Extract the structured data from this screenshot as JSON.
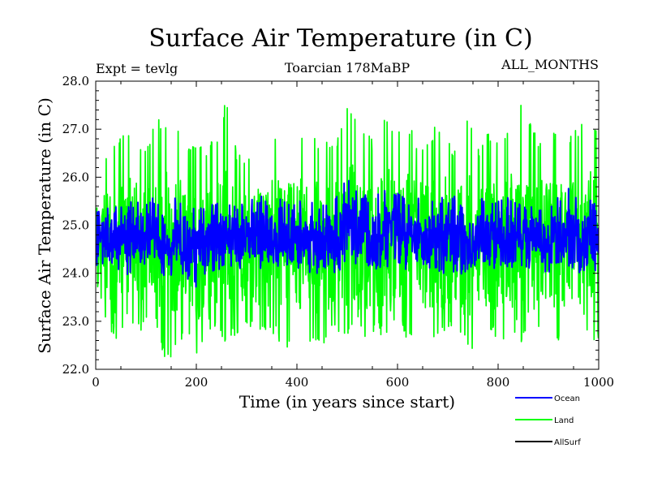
{
  "chart_data": {
    "type": "line",
    "title": "Surface Air Temperature (in C)",
    "left_subtitle": "Expt = tevlg",
    "center_subtitle": "Toarcian 178MaBP",
    "right_subtitle": "ALL_MONTHS",
    "xlabel": "Time (in years since start)",
    "ylabel": "Surface Air Temperature (in C)",
    "xlim": [
      0,
      1000
    ],
    "ylim": [
      22.0,
      28.0
    ],
    "x_ticks": [
      0,
      200,
      400,
      600,
      800,
      1000
    ],
    "x_tick_labels": [
      "0",
      "200",
      "400",
      "600",
      "800",
      "1000"
    ],
    "y_ticks": [
      22.0,
      23.0,
      24.0,
      25.0,
      26.0,
      27.0,
      28.0
    ],
    "y_tick_labels": [
      "22.0",
      "23.0",
      "24.0",
      "25.0",
      "26.0",
      "27.0",
      "28.0"
    ],
    "series": [
      {
        "name": "Land",
        "color": "#00ff00",
        "x": [
          0,
          20,
          40,
          60,
          80,
          100,
          120,
          140,
          160,
          180,
          200,
          220,
          240,
          260,
          280,
          300,
          320,
          340,
          360,
          380,
          400,
          420,
          440,
          460,
          480,
          500,
          520,
          540,
          560,
          580,
          600,
          620,
          640,
          660,
          680,
          700,
          720,
          740,
          760,
          780,
          800,
          820,
          840,
          860,
          880,
          900,
          920,
          940,
          960,
          980,
          1000
        ],
        "mean": [
          24.6,
          24.6,
          24.5,
          24.7,
          24.7,
          24.6,
          24.6,
          24.5,
          24.6,
          24.6,
          24.4,
          24.5,
          24.7,
          24.7,
          24.6,
          24.6,
          24.7,
          24.6,
          24.6,
          24.5,
          24.6,
          24.6,
          24.6,
          24.6,
          24.6,
          24.8,
          24.7,
          24.6,
          24.5,
          24.7,
          24.6,
          24.6,
          24.6,
          24.6,
          24.6,
          24.7,
          24.6,
          24.5,
          24.6,
          24.6,
          24.6,
          24.6,
          24.6,
          24.5,
          24.6,
          24.6,
          24.6,
          24.6,
          24.7,
          24.6,
          24.7
        ],
        "min": [
          22.8,
          23.0,
          22.6,
          23.0,
          22.6,
          23.0,
          22.9,
          22.1,
          22.3,
          22.9,
          22.2,
          22.8,
          22.9,
          22.5,
          22.7,
          22.8,
          22.8,
          22.6,
          22.7,
          22.2,
          22.9,
          22.5,
          22.4,
          22.6,
          22.8,
          22.7,
          22.9,
          22.6,
          22.8,
          22.5,
          23.0,
          22.6,
          22.4,
          22.8,
          22.6,
          22.7,
          22.9,
          22.3,
          22.6,
          22.8,
          22.6,
          22.6,
          22.5,
          22.6,
          22.8,
          22.5,
          22.6,
          22.9,
          22.7,
          22.6,
          22.6
        ],
        "max": [
          26.3,
          26.4,
          26.9,
          27.0,
          26.6,
          26.6,
          27.2,
          27.2,
          27.1,
          26.6,
          26.7,
          26.6,
          26.9,
          27.7,
          26.6,
          26.4,
          27.2,
          26.5,
          27.1,
          26.5,
          27.0,
          27.0,
          26.8,
          26.8,
          26.8,
          27.6,
          27.4,
          26.9,
          26.7,
          27.4,
          26.9,
          27.2,
          26.7,
          26.8,
          27.2,
          26.9,
          26.4,
          27.4,
          26.6,
          27.0,
          26.7,
          27.0,
          27.7,
          27.2,
          26.8,
          26.9,
          27.0,
          26.9,
          27.1,
          27.6,
          26.8
        ]
      },
      {
        "name": "Ocean",
        "color": "#0000ff",
        "x": [
          0,
          20,
          40,
          60,
          80,
          100,
          120,
          140,
          160,
          180,
          200,
          220,
          240,
          260,
          280,
          300,
          320,
          340,
          360,
          380,
          400,
          420,
          440,
          460,
          480,
          500,
          520,
          540,
          560,
          580,
          600,
          620,
          640,
          660,
          680,
          700,
          720,
          740,
          760,
          780,
          800,
          820,
          840,
          860,
          880,
          900,
          920,
          940,
          960,
          980,
          1000
        ],
        "mean": [
          24.7,
          24.7,
          24.7,
          24.7,
          24.8,
          24.8,
          24.7,
          24.7,
          24.8,
          24.7,
          24.6,
          24.7,
          24.8,
          24.8,
          24.7,
          24.8,
          24.8,
          24.7,
          24.7,
          24.7,
          24.7,
          24.7,
          24.7,
          24.7,
          24.7,
          25.1,
          24.9,
          24.7,
          24.7,
          24.8,
          24.8,
          24.7,
          24.8,
          24.7,
          24.7,
          24.8,
          24.8,
          24.6,
          24.7,
          24.7,
          24.8,
          24.7,
          24.7,
          24.7,
          24.7,
          24.7,
          24.7,
          24.8,
          24.7,
          24.7,
          24.8
        ],
        "min": [
          24.1,
          24.1,
          24.1,
          23.9,
          24.0,
          24.1,
          24.0,
          23.9,
          24.0,
          23.9,
          23.7,
          24.0,
          23.9,
          24.0,
          24.0,
          24.0,
          24.1,
          24.0,
          24.1,
          24.1,
          24.1,
          24.0,
          24.0,
          24.0,
          24.0,
          24.0,
          24.1,
          23.9,
          24.0,
          24.0,
          24.1,
          24.0,
          24.1,
          24.0,
          24.0,
          23.9,
          24.0,
          23.8,
          24.1,
          24.0,
          24.1,
          24.0,
          24.1,
          24.0,
          24.1,
          24.0,
          24.0,
          24.0,
          24.0,
          24.0,
          24.0
        ],
        "max": [
          25.3,
          25.4,
          25.5,
          25.5,
          25.5,
          25.5,
          25.6,
          25.5,
          25.6,
          25.5,
          25.4,
          25.5,
          25.6,
          25.5,
          25.5,
          25.5,
          25.6,
          25.6,
          25.6,
          25.5,
          25.6,
          25.6,
          25.5,
          25.6,
          25.6,
          26.1,
          25.8,
          25.6,
          25.7,
          25.8,
          25.7,
          25.6,
          25.7,
          25.6,
          25.7,
          25.6,
          25.6,
          25.5,
          25.6,
          25.6,
          25.6,
          25.6,
          25.6,
          25.5,
          25.5,
          25.5,
          25.6,
          25.8,
          25.6,
          25.6,
          25.5
        ]
      }
    ],
    "legend": [
      {
        "name": "Ocean",
        "color": "#0000ff"
      },
      {
        "name": "Land",
        "color": "#00ff00"
      },
      {
        "name": "AllSurf",
        "color": "#000000"
      }
    ]
  }
}
